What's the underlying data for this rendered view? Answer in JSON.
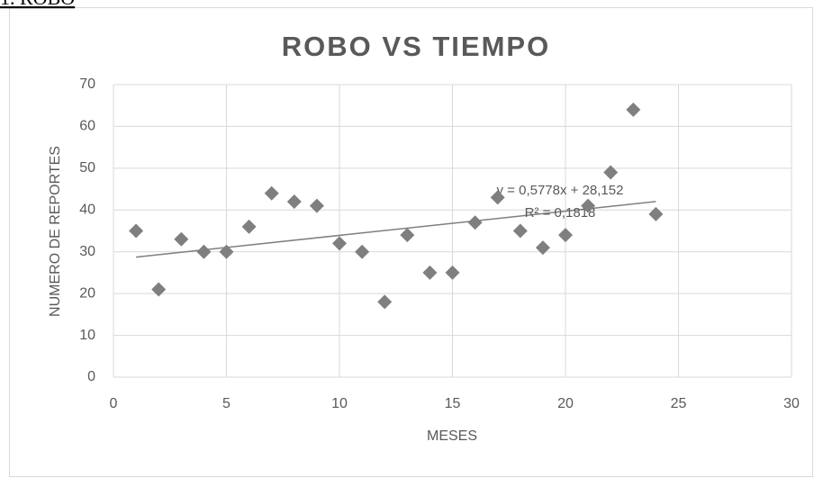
{
  "caption": "1. ROBO",
  "chart_data": {
    "type": "scatter",
    "title": "ROBO VS TIEMPO",
    "x_label": "MESES",
    "y_label": "NUMERO DE REPORTES",
    "color": "#7f7f7f",
    "x": [
      1,
      2,
      3,
      4,
      5,
      6,
      7,
      8,
      9,
      10,
      11,
      12,
      13,
      14,
      15,
      16,
      17,
      18,
      19,
      20,
      21,
      22,
      23,
      24
    ],
    "values": [
      35,
      21,
      33,
      30,
      30,
      36,
      44,
      42,
      41,
      32,
      30,
      18,
      34,
      25,
      25,
      37,
      43,
      35,
      31,
      34,
      41,
      49,
      64,
      39
    ],
    "xlim": [
      0,
      30
    ],
    "xticks": [
      0,
      5,
      10,
      15,
      20,
      25,
      30
    ],
    "ylim": [
      0,
      70
    ],
    "yticks": [
      0,
      10,
      20,
      30,
      40,
      50,
      60,
      70
    ],
    "grid": true,
    "trendline": {
      "slope": 0.5778,
      "intercept": 28.152,
      "color": "#7f7f7f",
      "equation_label": "y = 0,5778x + 28,152",
      "r2_label": "R² = 0,1818"
    }
  }
}
